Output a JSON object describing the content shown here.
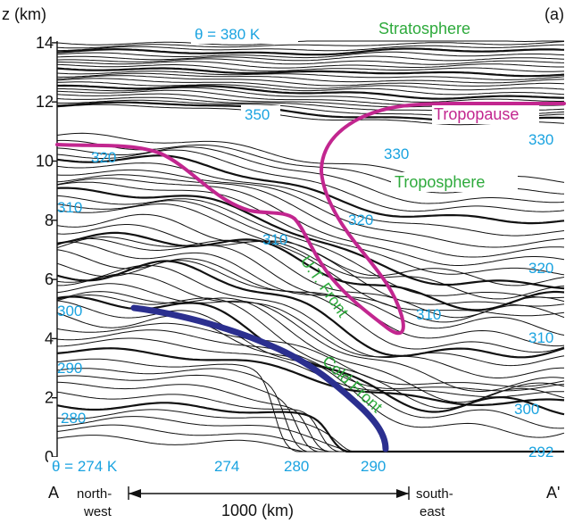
{
  "panel_label": "(a)",
  "axis": {
    "ylabel": "z (km)",
    "yticks": [
      "0",
      "2",
      "4",
      "6",
      "8",
      "10",
      "12",
      "14"
    ],
    "left_end": "A",
    "right_end": "A'",
    "left_dir_1": "north-",
    "left_dir_2": "west",
    "right_dir_1": "south-",
    "right_dir_2": "east",
    "scale_label": "1000 (km)"
  },
  "regions": {
    "stratosphere": "Stratosphere",
    "troposphere": "Troposphere",
    "tropopause": "Tropopause",
    "ut_front": "U.T. Front",
    "cold_front": "Cold Front"
  },
  "theta_labels": {
    "top": "θ = 380 K",
    "bottom": "θ = 274 K",
    "l350": "350",
    "l330a": "330",
    "l330b": "330",
    "l320a": "320",
    "l320b": "320",
    "l320c": "320",
    "l310a": "310",
    "l310b": "310",
    "l310c": "310",
    "l310d": "310",
    "l300a": "300",
    "l300b": "300",
    "l290a": "290",
    "l290b": "290",
    "l280a": "280",
    "l280b": "280",
    "l274": "274",
    "l292": "292"
  },
  "colors": {
    "theta_label": "#1aa3e0",
    "region_label": "#2eaa3c",
    "tropopause": "#c2268f",
    "cold_front": "#2b2f8f",
    "contour": "#111111"
  }
}
